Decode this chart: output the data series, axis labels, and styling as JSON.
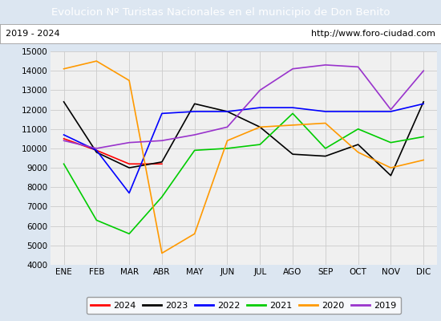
{
  "title": "Evolucion Nº Turistas Nacionales en el municipio de Don Benito",
  "subtitle_left": "2019 - 2024",
  "subtitle_right": "http://www.foro-ciudad.com",
  "title_bg_color": "#4472c4",
  "title_text_color": "#ffffff",
  "months": [
    "ENE",
    "FEB",
    "MAR",
    "ABR",
    "MAY",
    "JUN",
    "JUL",
    "AGO",
    "SEP",
    "OCT",
    "NOV",
    "DIC"
  ],
  "ylim": [
    4000,
    15000
  ],
  "yticks": [
    4000,
    5000,
    6000,
    7000,
    8000,
    9000,
    10000,
    11000,
    12000,
    13000,
    14000,
    15000
  ],
  "series": {
    "2024": {
      "color": "#ff0000",
      "data": [
        10500,
        9900,
        9200,
        9200,
        null,
        null,
        null,
        null,
        null,
        null,
        null,
        null
      ]
    },
    "2023": {
      "color": "#000000",
      "data": [
        12400,
        9800,
        9000,
        9300,
        12300,
        11900,
        11100,
        9700,
        9600,
        10200,
        8600,
        12400
      ]
    },
    "2022": {
      "color": "#0000ff",
      "data": [
        10700,
        9900,
        7700,
        11800,
        11900,
        11900,
        12100,
        12100,
        11900,
        11900,
        11900,
        12300
      ]
    },
    "2021": {
      "color": "#00cc00",
      "data": [
        9200,
        6300,
        5600,
        7500,
        9900,
        10000,
        10200,
        11800,
        10000,
        11000,
        10300,
        10600
      ]
    },
    "2020": {
      "color": "#ff9900",
      "data": [
        14100,
        14500,
        13500,
        4600,
        5600,
        10400,
        11100,
        11200,
        11300,
        9800,
        9000,
        9400
      ]
    },
    "2019": {
      "color": "#9933cc",
      "data": [
        10400,
        10000,
        10300,
        10400,
        10700,
        11100,
        13000,
        14100,
        14300,
        14200,
        12000,
        14000
      ]
    }
  },
  "legend_order": [
    "2024",
    "2023",
    "2022",
    "2021",
    "2020",
    "2019"
  ],
  "grid_color": "#cccccc",
  "plot_bg_color": "#f0f0f0",
  "outer_bg_color": "#dce6f1",
  "subtitle_bg_color": "#e8e8e8"
}
